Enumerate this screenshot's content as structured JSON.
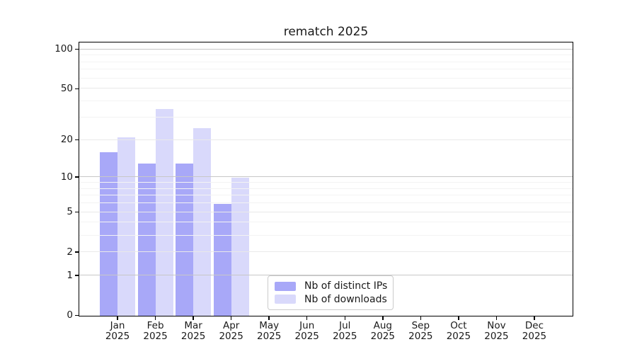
{
  "title": "rematch 2025",
  "chart_data": {
    "type": "bar",
    "title": "rematch 2025",
    "yscale": "log1p",
    "ylim": [
      0,
      112
    ],
    "grid": true,
    "legend_position": "lower center-right",
    "categories": [
      [
        "Jan",
        "2025"
      ],
      [
        "Feb",
        "2025"
      ],
      [
        "Mar",
        "2025"
      ],
      [
        "Apr",
        "2025"
      ],
      [
        "May",
        "2025"
      ],
      [
        "Jun",
        "2025"
      ],
      [
        "Jul",
        "2025"
      ],
      [
        "Aug",
        "2025"
      ],
      [
        "Sep",
        "2025"
      ],
      [
        "Oct",
        "2025"
      ],
      [
        "Nov",
        "2025"
      ],
      [
        "Dec",
        "2025"
      ]
    ],
    "series": [
      {
        "name": "Nb of distinct IPs",
        "color": "#a8a8f8",
        "values": [
          16,
          13,
          13,
          6,
          0,
          0,
          0,
          0,
          0,
          0,
          0,
          0
        ]
      },
      {
        "name": "Nb of downloads",
        "color": "#d9d9fb",
        "values": [
          21,
          35,
          25,
          10,
          0,
          0,
          0,
          0,
          0,
          0,
          0,
          0
        ]
      }
    ],
    "y_major_ticks": [
      0,
      1,
      2,
      5,
      10,
      20,
      50,
      100
    ],
    "y_minor_gridlines": [
      3,
      4,
      6,
      7,
      8,
      9,
      30,
      40,
      60,
      70,
      80,
      90
    ],
    "y_decade_gridlines": [
      1,
      10,
      100
    ]
  },
  "colors": {
    "background": "#ffffff",
    "spine": "#000000",
    "text": "#1a1a1a",
    "grid_minor": "#f3f3f3",
    "grid_major": "#e9e9e9",
    "grid_decade": "#c7c7c7",
    "legend_border": "#cbcbcb"
  },
  "legend": {
    "items": [
      "Nb of distinct IPs",
      "Nb of downloads"
    ]
  }
}
